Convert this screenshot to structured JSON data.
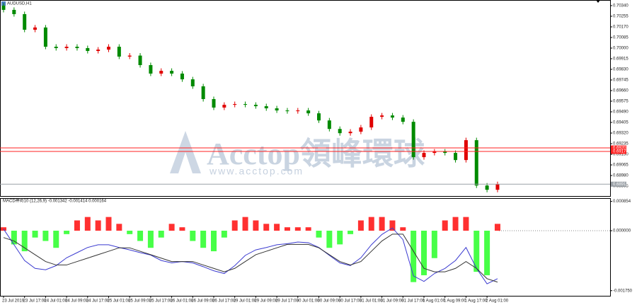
{
  "chart_data": [
    {
      "type": "candlestick",
      "title": "AUDUSD,H1",
      "annotations": [
        "Acctop領峰環球",
        "www.acctop.com"
      ],
      "categories": [
        "23 Jul 2019",
        null,
        "23 Jul 17:00",
        null,
        "24 Jul 01:00",
        null,
        "24 Jul 09:00",
        null,
        "24 Jul 17:00",
        null,
        "25 Jul 01:00",
        null,
        "25 Jul 09:00",
        null,
        "25 Jul 17:00",
        null,
        "26 Jul 01:00",
        null,
        "26 Jul 09:00",
        null,
        "26 Jul 17:00",
        null,
        "29 Jul 01:00",
        null,
        "29 Jul 09:00",
        null,
        "29 Jul 17:00",
        null,
        "30 Jul 01:00",
        null,
        "30 Jul 09:00",
        null,
        "30 Jul 17:00",
        null,
        "31 Jul 01:00",
        null,
        "31 Jul 09:00",
        null,
        "31 Jul 17:00",
        null,
        "1 Aug 01:00",
        null,
        "1 Aug 09:00",
        null,
        "1 Aug 17:00",
        null,
        "2 Aug 01:00",
        null
      ],
      "open": [
        0.7034,
        0.70306,
        0.70272,
        0.70147,
        0.70165,
        0.70011,
        0.7,
        0.70011,
        0.7,
        0.69977,
        0.69988,
        0.70011,
        0.69932,
        0.6994,
        0.69864,
        0.69796,
        0.69818,
        0.69796,
        0.6975,
        0.69694,
        0.69592,
        0.69524,
        0.69546,
        0.69552,
        0.69546,
        0.69535,
        0.69518,
        0.69501,
        0.69495,
        0.69501,
        0.69478,
        0.69421,
        0.69353,
        0.69319,
        0.69331,
        0.69365,
        0.6945,
        0.69461,
        0.69444,
        0.6941,
        0.69127,
        0.69161,
        0.69172,
        0.69161,
        0.69104,
        0.69263,
        0.689,
        0.68866
      ],
      "high": [
        0.7036,
        0.70326,
        0.70292,
        0.70185,
        0.70185,
        0.70031,
        0.70031,
        0.70031,
        0.7002,
        0.70008,
        0.70031,
        0.70031,
        0.6996,
        0.6996,
        0.69884,
        0.69838,
        0.69838,
        0.69816,
        0.6977,
        0.69714,
        0.69612,
        0.69566,
        0.69572,
        0.69572,
        0.69566,
        0.69555,
        0.69538,
        0.69521,
        0.69521,
        0.69521,
        0.69498,
        0.69441,
        0.69373,
        0.69351,
        0.69385,
        0.6947,
        0.69481,
        0.69481,
        0.69464,
        0.6943,
        0.69181,
        0.69192,
        0.69192,
        0.69181,
        0.69283,
        0.69283,
        0.6892,
        0.68931
      ],
      "low": [
        0.70286,
        0.70252,
        0.70127,
        0.70127,
        0.69991,
        0.6998,
        0.6998,
        0.6998,
        0.69957,
        0.69957,
        0.69968,
        0.69912,
        0.69912,
        0.69844,
        0.69776,
        0.69776,
        0.69776,
        0.6973,
        0.69674,
        0.69572,
        0.69504,
        0.69504,
        0.69526,
        0.69526,
        0.69515,
        0.69498,
        0.69481,
        0.69475,
        0.69475,
        0.69458,
        0.69401,
        0.69333,
        0.69299,
        0.69299,
        0.69311,
        0.69345,
        0.6943,
        0.69424,
        0.6939,
        0.69107,
        0.69107,
        0.69141,
        0.69141,
        0.69084,
        0.69084,
        0.6888,
        0.68846,
        0.68846
      ],
      "close": [
        0.70306,
        0.70272,
        0.70147,
        0.70165,
        0.70011,
        0.7,
        0.70011,
        0.7,
        0.69977,
        0.69988,
        0.70011,
        0.69932,
        0.6994,
        0.69864,
        0.69796,
        0.69818,
        0.69796,
        0.6975,
        0.69694,
        0.69592,
        0.69524,
        0.69546,
        0.69552,
        0.69546,
        0.69535,
        0.69518,
        0.69501,
        0.69495,
        0.69501,
        0.69478,
        0.69421,
        0.69353,
        0.69319,
        0.69331,
        0.69365,
        0.6945,
        0.69461,
        0.69444,
        0.6941,
        0.69127,
        0.69161,
        0.69172,
        0.69161,
        0.69104,
        0.69263,
        0.689,
        0.68866,
        0.68911
      ],
      "up_color": "#e00000",
      "down_color": "#008a00",
      "ylim": [
        0.68816,
        0.70385
      ],
      "yticks": [
        {
          "value": 0.7034,
          "label": "0.70340"
        },
        {
          "value": 0.70255,
          "label": "0.70255"
        },
        {
          "value": 0.7017,
          "label": "0.70170"
        },
        {
          "value": 0.70085,
          "label": "0.70085"
        },
        {
          "value": 0.7,
          "label": "0.70000"
        },
        {
          "value": 0.69915,
          "label": "0.69915"
        },
        {
          "value": 0.6983,
          "label": "0.69830"
        },
        {
          "value": 0.69745,
          "label": "0.69745"
        },
        {
          "value": 0.6966,
          "label": "0.69660"
        },
        {
          "value": 0.69575,
          "label": "0.69575"
        },
        {
          "value": 0.6949,
          "label": "0.69490"
        },
        {
          "value": 0.69405,
          "label": "0.69405"
        },
        {
          "value": 0.6932,
          "label": "0.69320"
        },
        {
          "value": 0.69235,
          "label": "0.69235"
        },
        {
          "value": 0.6915,
          "label": "0.69150"
        },
        {
          "value": 0.69065,
          "label": "0.69065"
        },
        {
          "value": 0.6898,
          "label": "0.68980"
        },
        {
          "value": 0.68895,
          "label": "0.68895"
        }
      ],
      "levels": [
        0.69201,
        0.69173
      ],
      "level_color": "#ff2020",
      "current_price": 0.68911,
      "current_color": "#9aa0a6"
    },
    {
      "type": "macd",
      "title": "MACD神奇10 (12,26,9) -0.001342 -0.001414 0.000164",
      "histogram": [
        0.0001,
        -0.0004,
        -0.0006,
        -0.0002,
        -0.0003,
        -0.0005,
        -0.0001,
        0.0003,
        0.0004,
        0.0003,
        0.0004,
        0.0002,
        -0.0001,
        -0.0003,
        -0.0005,
        -0.0002,
        0.0002,
        0.0001,
        -0.0003,
        -0.0005,
        -0.0006,
        -0.0002,
        0.0003,
        0.0004,
        0.0003,
        0.0002,
        0.0002,
        0.0001,
        0.0001,
        0.0001,
        -0.0002,
        -0.0005,
        -0.0004,
        -0.0001,
        0.0003,
        0.0004,
        0.0004,
        0.0003,
        0.0001,
        -0.0015,
        -0.0013,
        -0.0008,
        0.0003,
        0.0004,
        0.0004,
        -0.0012,
        -0.0013,
        0.0002
      ],
      "up_color": "#ff1a1a",
      "down_color": "#33ff33",
      "lines": [
        {
          "color": "#3b3bd0",
          "values": [
            5e-05,
            -0.00041,
            -0.00087,
            -0.0011,
            -0.00114,
            -0.00102,
            -0.00079,
            -0.00064,
            -0.00049,
            -0.00041,
            -0.00041,
            -0.00049,
            -0.00056,
            -0.00064,
            -0.00071,
            -0.00087,
            -0.00094,
            -0.0009,
            -0.00094,
            -0.00105,
            -0.00117,
            -0.00125,
            -0.00102,
            -0.00072,
            -0.00056,
            -0.00049,
            -0.00041,
            -0.00038,
            -0.00033,
            -0.00035,
            -0.00049,
            -0.00072,
            -0.00094,
            -0.00102,
            -0.00079,
            -0.00041,
            -0.00011,
            8e-05,
            -0.00026,
            -0.00132,
            -0.00148,
            -0.00125,
            -0.0011,
            -0.00087,
            -0.00049,
            -0.0011,
            -0.00155,
            -0.0014
          ]
        },
        {
          "color": "#333333",
          "values": [
            -0.0002,
            -0.0003,
            -0.0005,
            -0.0007,
            -0.0009,
            -0.001,
            -0.001,
            -0.0009,
            -0.0008,
            -0.0007,
            -0.0006,
            -0.0005,
            -0.0005,
            -0.0006,
            -0.0007,
            -0.0008,
            -0.0009,
            -0.0009,
            -0.0009,
            -0.001,
            -0.0011,
            -0.0012,
            -0.0011,
            -0.0009,
            -0.0007,
            -0.0006,
            -0.0005,
            -0.0004,
            -0.0004,
            -0.0004,
            -0.0005,
            -0.0007,
            -0.0009,
            -0.001,
            -0.0009,
            -0.0006,
            -0.0003,
            -0.0001,
            -0.0001,
            -0.0006,
            -0.0011,
            -0.0012,
            -0.0012,
            -0.0011,
            -0.0009,
            -0.0011,
            -0.0014,
            -0.0015
          ]
        }
      ],
      "ylim": [
        -0.0019,
        0.00095
      ],
      "yticks": [
        0.000854,
        {
          "value": 0,
          "label": "0.000000"
        },
        {
          "value": -0.00175,
          "label": "-0.001750"
        }
      ]
    }
  ]
}
